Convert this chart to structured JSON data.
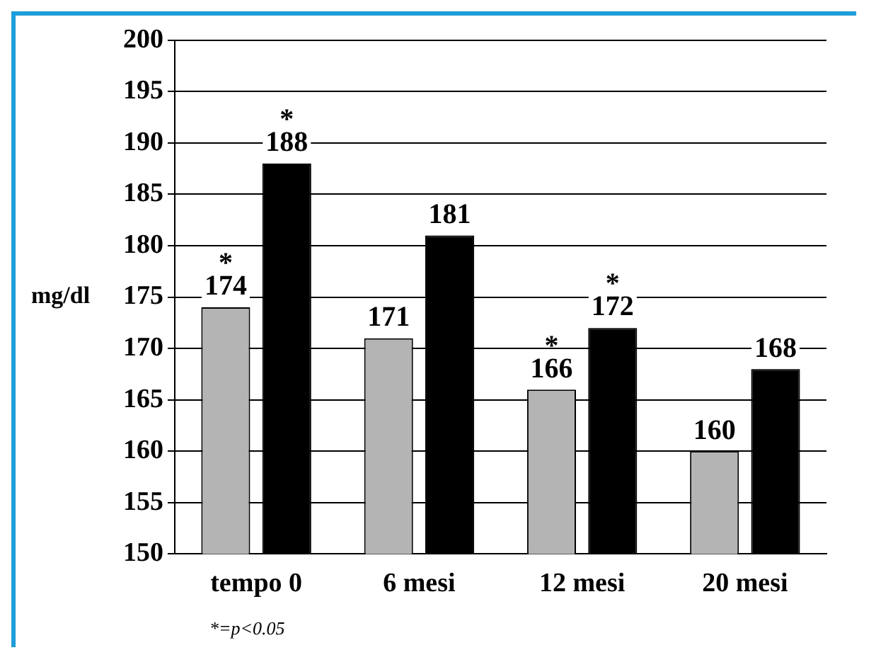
{
  "chart_data": {
    "type": "bar",
    "ylabel": "mg/dl",
    "categories": [
      "tempo 0",
      "6 mesi",
      "12 mesi",
      "20 mesi"
    ],
    "series": [
      {
        "color": "#b4b4b4",
        "values": [
          174,
          171,
          166,
          160
        ]
      },
      {
        "color": "#000000",
        "values": [
          188,
          181,
          172,
          168
        ]
      }
    ],
    "ylim": [
      150,
      200
    ],
    "yticks": [
      150,
      155,
      160,
      165,
      170,
      175,
      180,
      185,
      190,
      195,
      200
    ],
    "grid": "y",
    "legend": false,
    "data_labels": true,
    "annotations": [
      {
        "text": "*",
        "x": "tempo 0",
        "y": 174
      },
      {
        "text": "*",
        "x": "tempo 0",
        "y": 188
      },
      {
        "text": "*",
        "x": "12 mesi",
        "y": 166
      },
      {
        "text": "*",
        "x": "12 mesi",
        "y": 172
      },
      "*=p<0.05"
    ]
  }
}
